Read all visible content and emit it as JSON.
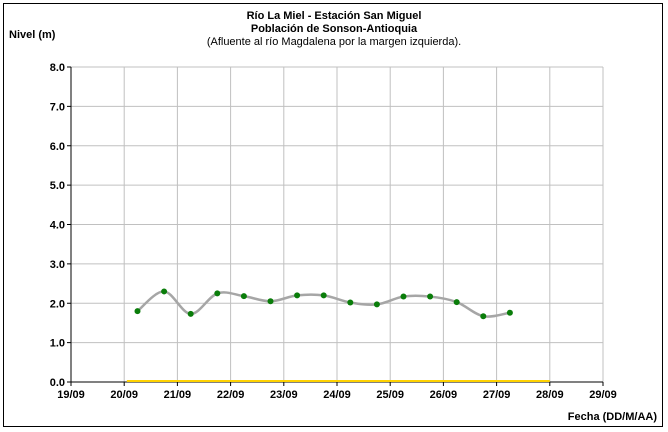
{
  "chart_data": {
    "type": "line",
    "title": "Río La Miel  - Estación San Miguel",
    "subtitle": "Población de Sonson-Antioquia",
    "note": "(Afluente al río Magdalena por la margen izquierda).",
    "ylabel": "Nivel (m)",
    "xlabel": "Fecha (DD/M/AA)",
    "ylim": [
      0,
      8
    ],
    "yticks": [
      "0.0",
      "1.0",
      "2.0",
      "3.0",
      "4.0",
      "5.0",
      "6.0",
      "7.0",
      "8.0"
    ],
    "xticks": [
      "19/09",
      "20/09",
      "21/09",
      "22/09",
      "23/09",
      "24/09",
      "25/09",
      "26/09",
      "27/09",
      "28/09",
      "29/09"
    ],
    "grid": true,
    "series": [
      {
        "color": "#a6a6a6",
        "marker_color": "#0a7d0a",
        "x": [
          "20/09 06:00",
          "20/09 18:00",
          "21/09 06:00",
          "21/09 18:00",
          "22/09 06:00",
          "22/09 18:00",
          "23/09 06:00",
          "23/09 18:00",
          "24/09 06:00",
          "24/09 18:00",
          "25/09 06:00",
          "25/09 18:00",
          "26/09 06:00",
          "26/09 18:00",
          "27/09 06:00"
        ],
        "values": [
          1.8,
          2.3,
          1.73,
          2.25,
          2.18,
          2.05,
          2.2,
          2.2,
          2.02,
          1.97,
          2.17,
          2.17,
          2.03,
          1.67,
          1.76
        ]
      }
    ],
    "threshold": {
      "color": "#ffd200",
      "from": "20/09",
      "to": "28/09",
      "value": 0
    }
  }
}
